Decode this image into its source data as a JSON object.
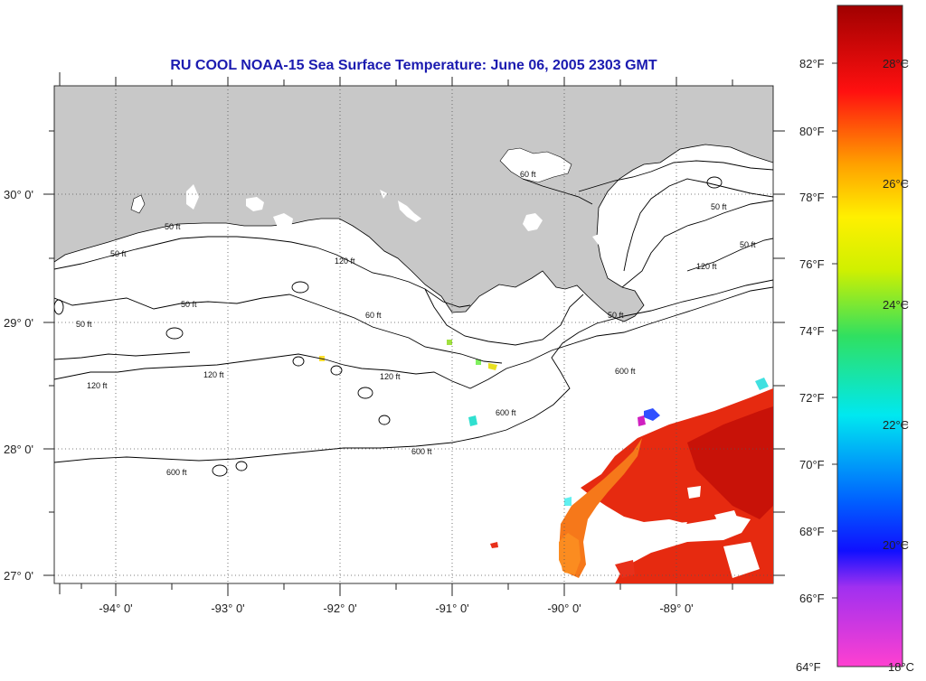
{
  "title": "RU COOL  NOAA-15  Sea Surface Temperature:  June 06, 2005 2303 GMT",
  "map": {
    "lon_labels": [
      "-94° 0'",
      "-93° 0'",
      "-92° 0'",
      "-91° 0'",
      "-90° 0'",
      "-89° 0'"
    ],
    "lat_labels": [
      "30° 0'",
      "29° 0'",
      "28° 0'",
      "27° 0'"
    ],
    "contour_labels": [
      {
        "id": "c1",
        "text": "50 ft"
      },
      {
        "id": "c2",
        "text": "50 ft"
      },
      {
        "id": "c3",
        "text": "50 ft"
      },
      {
        "id": "c4",
        "text": "50 ft"
      },
      {
        "id": "c5",
        "text": "120 ft"
      },
      {
        "id": "c6",
        "text": "120 ft"
      },
      {
        "id": "c7",
        "text": "120 ft"
      },
      {
        "id": "c8",
        "text": "60 ft"
      },
      {
        "id": "c9",
        "text": "600 ft"
      },
      {
        "id": "c10",
        "text": "600 ft"
      },
      {
        "id": "c11",
        "text": "600 ft"
      },
      {
        "id": "c12",
        "text": "600 ft"
      },
      {
        "id": "c13",
        "text": "60 ft"
      },
      {
        "id": "c14",
        "text": "120 ft"
      },
      {
        "id": "c15",
        "text": "50 ft"
      },
      {
        "id": "c16",
        "text": "120 ft"
      },
      {
        "id": "c17",
        "text": "50 ft"
      },
      {
        "id": "c18",
        "text": "50 ft"
      }
    ],
    "colors": {
      "land": "#c8c8c8",
      "ocean": "#ffffff",
      "title": "#1b1bb0"
    }
  },
  "colorbar": {
    "f_labels": [
      "82°F",
      "80°F",
      "78°F",
      "76°F",
      "74°F",
      "72°F",
      "70°F",
      "68°F",
      "66°F",
      "64°F"
    ],
    "c_labels": [
      "28°C",
      "26°C",
      "24°C",
      "22°C",
      "20°C",
      "18°C"
    ],
    "range_c": [
      18,
      29.5
    ]
  }
}
